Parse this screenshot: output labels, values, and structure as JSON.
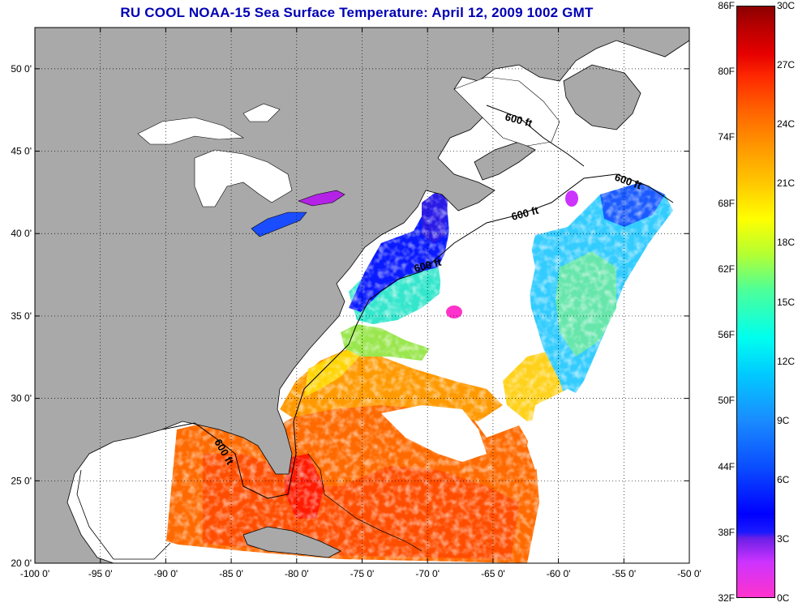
{
  "title": "RU COOL  NOAA-15  Sea Surface Temperature:  April 12, 2009 1002 GMT",
  "map": {
    "lon_ticks": [
      "-100 0'",
      "-95 0'",
      "-90 0'",
      "-85 0'",
      "-80 0'",
      "-75 0'",
      "-70 0'",
      "-65 0'",
      "-60 0'",
      "-55 0'",
      "-50 0'"
    ],
    "lat_ticks": [
      "50 0'",
      "45 0'",
      "40 0'",
      "35 0'",
      "30 0'",
      "25 0'",
      "20 0'"
    ],
    "lon_range": [
      -100,
      -50
    ],
    "lat_range": [
      20,
      52.5
    ],
    "grid": "dotted",
    "contour_labels": [
      "600 ft",
      "600 ft",
      "600 ft",
      "600 ft",
      "600 ft"
    ],
    "colors": {
      "land": "#a9a9a9",
      "cloud": "#ffffff",
      "title": "#0000b4"
    }
  },
  "colorbar": {
    "fahrenheit": [
      "86F",
      "80F",
      "74F",
      "68F",
      "62F",
      "56F",
      "50F",
      "44F",
      "38F",
      "32F"
    ],
    "celsius": [
      "30C",
      "27C",
      "24C",
      "21C",
      "18C",
      "15C",
      "12C",
      "9C",
      "6C",
      "3C",
      "0C"
    ]
  }
}
